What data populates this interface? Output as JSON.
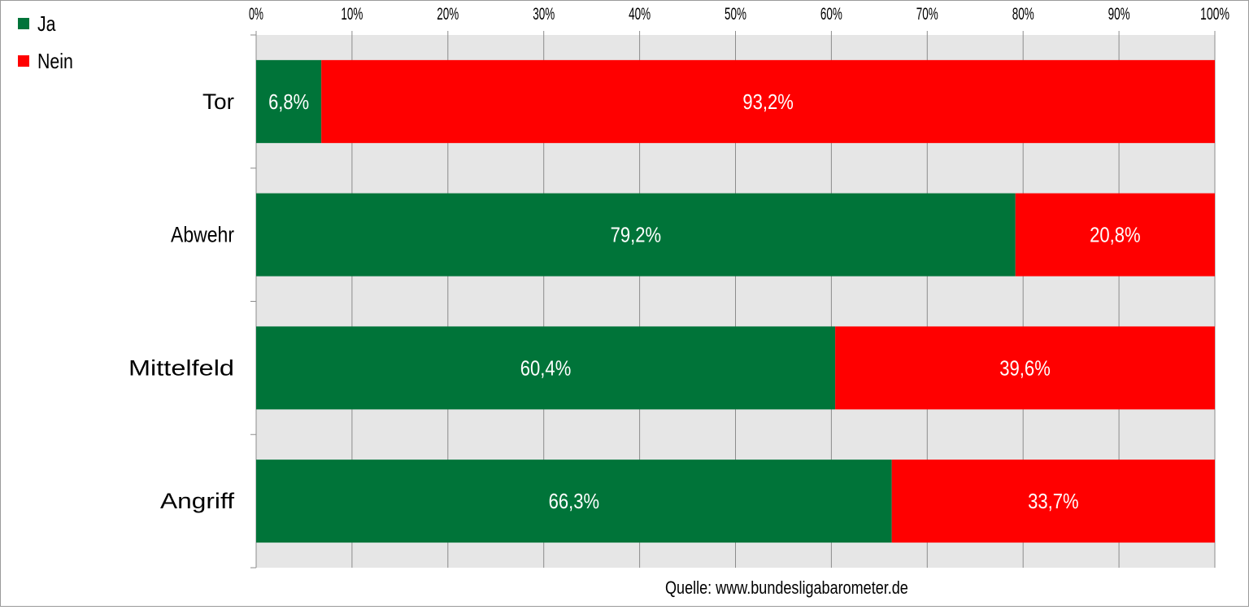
{
  "chart_data": {
    "type": "bar",
    "orientation": "horizontal",
    "stacked": "percent",
    "categories": [
      "Tor",
      "Abwehr",
      "Mittelfeld",
      "Angriff"
    ],
    "series": [
      {
        "name": "Ja",
        "color": "#007439",
        "values": [
          6.8,
          79.2,
          60.4,
          66.3
        ],
        "labels": [
          "6,8%",
          "79,2%",
          "60,4%",
          "66,3%"
        ]
      },
      {
        "name": "Nein",
        "color": "#ff0000",
        "values": [
          93.2,
          20.8,
          39.6,
          33.7
        ],
        "labels": [
          "93,2%",
          "20,8%",
          "39,6%",
          "33,7%"
        ]
      }
    ],
    "x_ticks": [
      "0%",
      "10%",
      "20%",
      "30%",
      "40%",
      "50%",
      "60%",
      "70%",
      "80%",
      "90%",
      "100%"
    ],
    "xlim": [
      0,
      100
    ],
    "x_axis_position": "top",
    "grid": true,
    "legend_position": "top-left",
    "source": "Quelle: www.bundesligabarometer.de"
  }
}
